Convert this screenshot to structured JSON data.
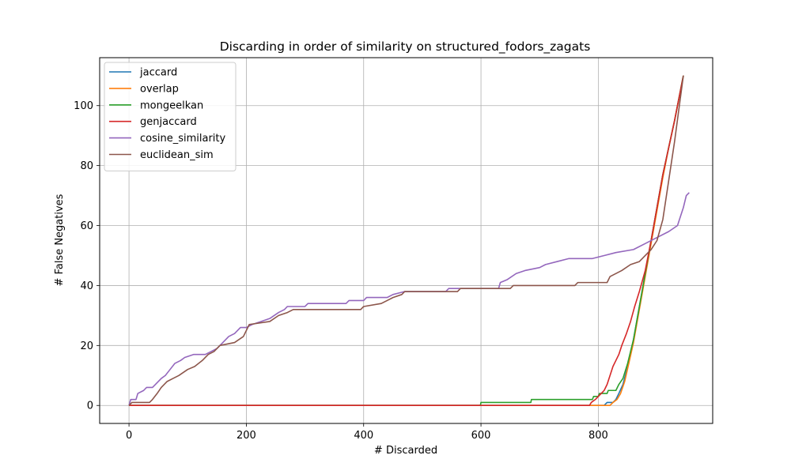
{
  "chart_data": {
    "type": "line",
    "title": "Discarding in order of similarity on structured_fodors_zagats",
    "xlabel": "# Discarded",
    "ylabel": "# False Negatives",
    "xlim": [
      -50,
      995
    ],
    "ylim": [
      -6,
      116
    ],
    "xticks": [
      0,
      200,
      400,
      600,
      800
    ],
    "yticks": [
      0,
      20,
      40,
      60,
      80,
      100
    ],
    "grid": true,
    "legend_position": "upper-left",
    "series": [
      {
        "name": "jaccard",
        "color": "#1f77b4",
        "points": [
          [
            0,
            0
          ],
          [
            810,
            0
          ],
          [
            815,
            1
          ],
          [
            825,
            1
          ],
          [
            830,
            2
          ],
          [
            835,
            4
          ],
          [
            842,
            7
          ],
          [
            850,
            13
          ],
          [
            860,
            22
          ],
          [
            870,
            33
          ],
          [
            880,
            44
          ],
          [
            890,
            55
          ],
          [
            900,
            66
          ],
          [
            910,
            77
          ],
          [
            920,
            86
          ],
          [
            930,
            95
          ],
          [
            945,
            110
          ]
        ]
      },
      {
        "name": "overlap",
        "color": "#ff7f0e",
        "points": [
          [
            0,
            0
          ],
          [
            820,
            0
          ],
          [
            825,
            1
          ],
          [
            832,
            2
          ],
          [
            838,
            4
          ],
          [
            845,
            8
          ],
          [
            852,
            14
          ],
          [
            860,
            21
          ],
          [
            870,
            32
          ],
          [
            880,
            43
          ],
          [
            890,
            54
          ],
          [
            900,
            65
          ],
          [
            910,
            76
          ],
          [
            920,
            86
          ],
          [
            930,
            95
          ],
          [
            945,
            110
          ]
        ]
      },
      {
        "name": "mongeelkan",
        "color": "#2ca02c",
        "points": [
          [
            0,
            0
          ],
          [
            599,
            0
          ],
          [
            600,
            1
          ],
          [
            685,
            1
          ],
          [
            686,
            2
          ],
          [
            790,
            2
          ],
          [
            792,
            3
          ],
          [
            800,
            3
          ],
          [
            802,
            4
          ],
          [
            815,
            4
          ],
          [
            817,
            5
          ],
          [
            830,
            5
          ],
          [
            835,
            7
          ],
          [
            842,
            9
          ],
          [
            850,
            14
          ],
          [
            860,
            22
          ],
          [
            870,
            33
          ],
          [
            880,
            44
          ],
          [
            890,
            55
          ],
          [
            900,
            66
          ],
          [
            910,
            77
          ],
          [
            920,
            86
          ],
          [
            930,
            95
          ],
          [
            945,
            110
          ]
        ]
      },
      {
        "name": "genjaccard",
        "color": "#d62728",
        "points": [
          [
            0,
            0
          ],
          [
            785,
            0
          ],
          [
            788,
            1
          ],
          [
            795,
            2
          ],
          [
            800,
            3
          ],
          [
            805,
            4
          ],
          [
            810,
            5
          ],
          [
            815,
            7
          ],
          [
            820,
            10
          ],
          [
            825,
            13
          ],
          [
            830,
            15
          ],
          [
            835,
            17
          ],
          [
            840,
            20
          ],
          [
            848,
            24
          ],
          [
            855,
            28
          ],
          [
            862,
            33
          ],
          [
            870,
            38
          ],
          [
            880,
            45
          ],
          [
            890,
            55
          ],
          [
            900,
            66
          ],
          [
            910,
            77
          ],
          [
            920,
            86
          ],
          [
            930,
            95
          ],
          [
            945,
            110
          ]
        ]
      },
      {
        "name": "cosine_similarity",
        "color": "#9467bd",
        "points": [
          [
            0,
            0
          ],
          [
            3,
            2
          ],
          [
            12,
            2
          ],
          [
            15,
            4
          ],
          [
            25,
            5
          ],
          [
            30,
            6
          ],
          [
            40,
            6
          ],
          [
            45,
            7
          ],
          [
            55,
            9
          ],
          [
            62,
            10
          ],
          [
            70,
            12
          ],
          [
            78,
            14
          ],
          [
            88,
            15
          ],
          [
            95,
            16
          ],
          [
            110,
            17
          ],
          [
            130,
            17
          ],
          [
            140,
            18
          ],
          [
            150,
            19
          ],
          [
            160,
            21
          ],
          [
            170,
            23
          ],
          [
            180,
            24
          ],
          [
            190,
            26
          ],
          [
            200,
            26
          ],
          [
            210,
            27
          ],
          [
            225,
            28
          ],
          [
            240,
            29
          ],
          [
            255,
            31
          ],
          [
            265,
            32
          ],
          [
            270,
            33
          ],
          [
            300,
            33
          ],
          [
            305,
            34
          ],
          [
            370,
            34
          ],
          [
            375,
            35
          ],
          [
            400,
            35
          ],
          [
            405,
            36
          ],
          [
            440,
            36
          ],
          [
            450,
            37
          ],
          [
            470,
            38
          ],
          [
            540,
            38
          ],
          [
            545,
            39
          ],
          [
            630,
            39
          ],
          [
            633,
            41
          ],
          [
            645,
            42
          ],
          [
            660,
            44
          ],
          [
            675,
            45
          ],
          [
            700,
            46
          ],
          [
            710,
            47
          ],
          [
            730,
            48
          ],
          [
            750,
            49
          ],
          [
            790,
            49
          ],
          [
            810,
            50
          ],
          [
            830,
            51
          ],
          [
            860,
            52
          ],
          [
            880,
            54
          ],
          [
            900,
            56
          ],
          [
            920,
            58
          ],
          [
            935,
            60
          ],
          [
            940,
            63
          ],
          [
            945,
            66
          ],
          [
            950,
            70
          ],
          [
            955,
            71
          ]
        ]
      },
      {
        "name": "euclidean_sim",
        "color": "#8c564b",
        "points": [
          [
            0,
            0
          ],
          [
            5,
            1
          ],
          [
            35,
            1
          ],
          [
            40,
            2
          ],
          [
            48,
            4
          ],
          [
            55,
            6
          ],
          [
            65,
            8
          ],
          [
            75,
            9
          ],
          [
            85,
            10
          ],
          [
            100,
            12
          ],
          [
            112,
            13
          ],
          [
            125,
            15
          ],
          [
            135,
            17
          ],
          [
            145,
            18
          ],
          [
            155,
            20
          ],
          [
            180,
            21
          ],
          [
            195,
            23
          ],
          [
            200,
            25
          ],
          [
            205,
            27
          ],
          [
            240,
            28
          ],
          [
            255,
            30
          ],
          [
            270,
            31
          ],
          [
            280,
            32
          ],
          [
            395,
            32
          ],
          [
            400,
            33
          ],
          [
            430,
            34
          ],
          [
            440,
            35
          ],
          [
            450,
            36
          ],
          [
            465,
            37
          ],
          [
            470,
            38
          ],
          [
            560,
            38
          ],
          [
            565,
            39
          ],
          [
            650,
            39
          ],
          [
            655,
            40
          ],
          [
            760,
            40
          ],
          [
            765,
            41
          ],
          [
            815,
            41
          ],
          [
            820,
            43
          ],
          [
            840,
            45
          ],
          [
            855,
            47
          ],
          [
            870,
            48
          ],
          [
            880,
            50
          ],
          [
            890,
            52
          ],
          [
            900,
            55
          ],
          [
            910,
            62
          ],
          [
            920,
            75
          ],
          [
            930,
            88
          ],
          [
            945,
            110
          ]
        ]
      }
    ]
  }
}
